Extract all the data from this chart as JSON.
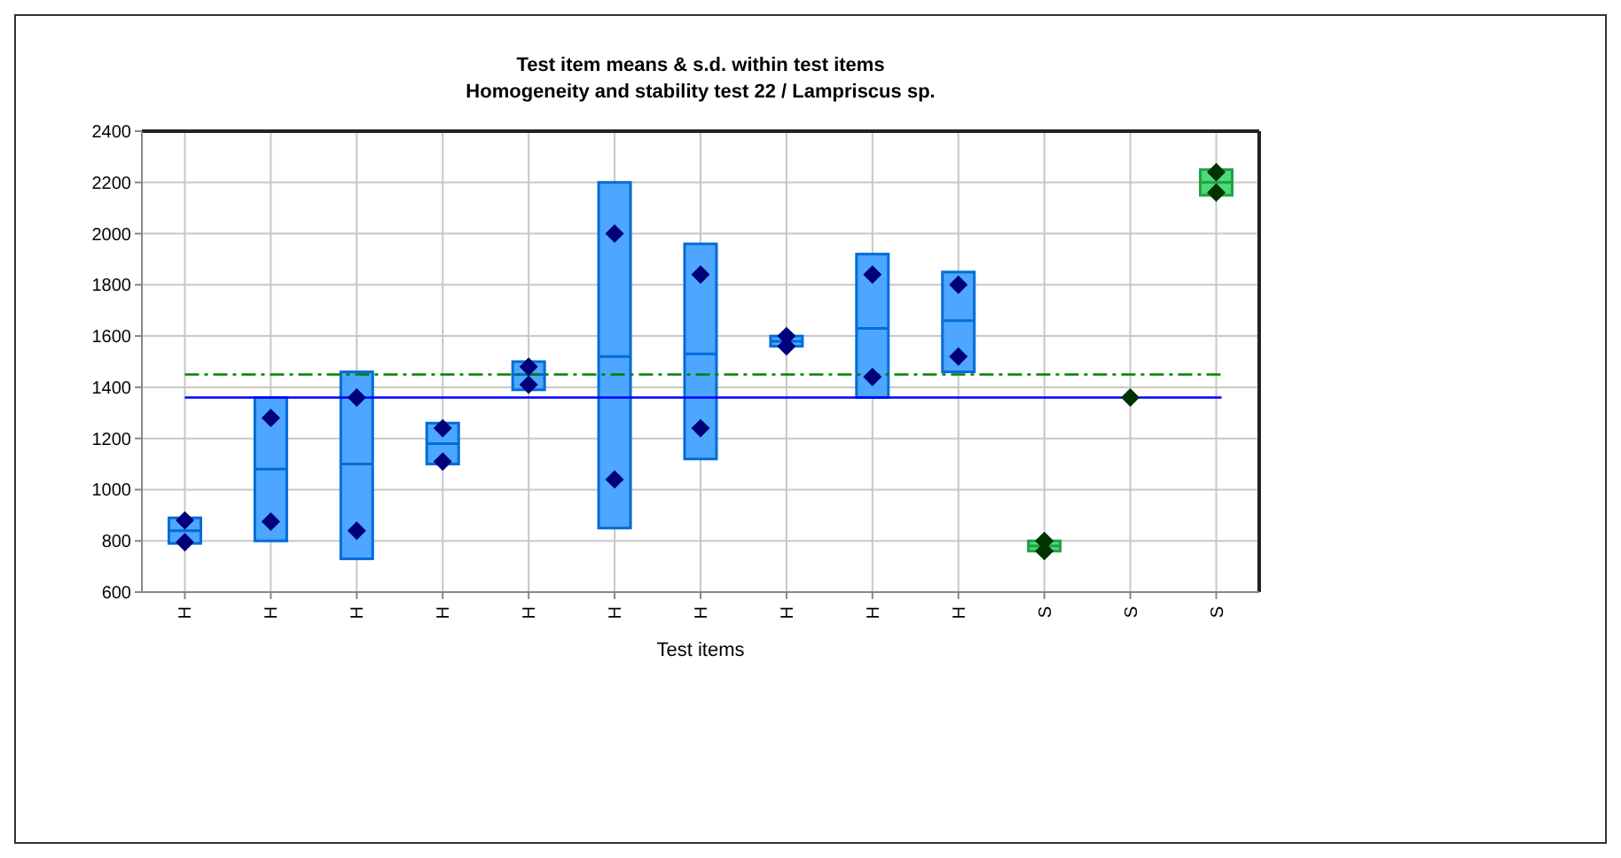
{
  "chart_data": {
    "type": "box",
    "title": "Test item means & s.d. within test items",
    "subtitle": "Homogeneity and stability test 22 / Lampriscus sp.",
    "xlabel": "Test items",
    "categories": [
      "H",
      "H",
      "H",
      "H",
      "H",
      "H",
      "H",
      "H",
      "H",
      "H",
      "S",
      "S",
      "S"
    ],
    "colors": [
      "#4da6ff",
      "#4da6ff",
      "#4da6ff",
      "#4da6ff",
      "#4da6ff",
      "#4da6ff",
      "#4da6ff",
      "#4da6ff",
      "#4da6ff",
      "#4da6ff",
      "#4ddb7a",
      null,
      "#4ddb7a"
    ],
    "boxes": [
      {
        "low": 790,
        "q1": 790,
        "median": 840,
        "q3": 890,
        "high": 890
      },
      {
        "low": 800,
        "q1": 800,
        "median": 1080,
        "q3": 1360,
        "high": 1360
      },
      {
        "low": 730,
        "q1": 730,
        "median": 1100,
        "q3": 1460,
        "high": 1460
      },
      {
        "low": 1100,
        "q1": 1100,
        "median": 1180,
        "q3": 1260,
        "high": 1260
      },
      {
        "low": 1390,
        "q1": 1390,
        "median": 1450,
        "q3": 1500,
        "high": 1500
      },
      {
        "low": 850,
        "q1": 850,
        "median": 1520,
        "q3": 2200,
        "high": 2200
      },
      {
        "low": 1120,
        "q1": 1120,
        "median": 1530,
        "q3": 1960,
        "high": 1960
      },
      {
        "low": 1560,
        "q1": 1560,
        "median": 1580,
        "q3": 1600,
        "high": 1600
      },
      {
        "low": 1360,
        "q1": 1360,
        "median": 1630,
        "q3": 1920,
        "high": 1920
      },
      {
        "low": 1460,
        "q1": 1460,
        "median": 1660,
        "q3": 1850,
        "high": 1850
      },
      {
        "low": 760,
        "q1": 760,
        "median": 780,
        "q3": 800,
        "high": 800
      },
      null,
      {
        "low": 2150,
        "q1": 2150,
        "median": 2200,
        "q3": 2250,
        "high": 2250
      }
    ],
    "series": [
      {
        "type": "scatter",
        "colors": [
          "#00007a",
          "#00007a",
          "#00007a",
          "#00007a",
          "#00007a",
          "#00007a",
          "#00007a",
          "#00007a",
          "#00007a",
          "#00007a",
          "#003300",
          "#003300",
          "#003300"
        ],
        "values": [
          880,
          1280,
          1360,
          1240,
          1480,
          2000,
          1840,
          1600,
          1840,
          1800,
          800,
          1360,
          2240
        ]
      },
      {
        "type": "scatter",
        "colors": [
          "#00007a",
          "#00007a",
          "#00007a",
          "#00007a",
          "#00007a",
          "#00007a",
          "#00007a",
          "#00007a",
          "#00007a",
          "#00007a",
          "#003300",
          null,
          "#003300"
        ],
        "values": [
          795,
          875,
          840,
          1110,
          1410,
          1040,
          1240,
          1560,
          1440,
          1520,
          760,
          null,
          2160
        ]
      }
    ],
    "ref_lines": [
      {
        "axis": "y",
        "value": 1360,
        "color": "#0000ff",
        "line_style": "solid"
      },
      {
        "axis": "y",
        "value": 1450,
        "color": "#008000",
        "line_style": "dashed"
      }
    ],
    "ylim": [
      600,
      2400
    ],
    "yticks": [
      600,
      800,
      1000,
      1200,
      1400,
      1600,
      1800,
      2000,
      2200,
      2400
    ],
    "grid": true,
    "marker": "diamond"
  }
}
